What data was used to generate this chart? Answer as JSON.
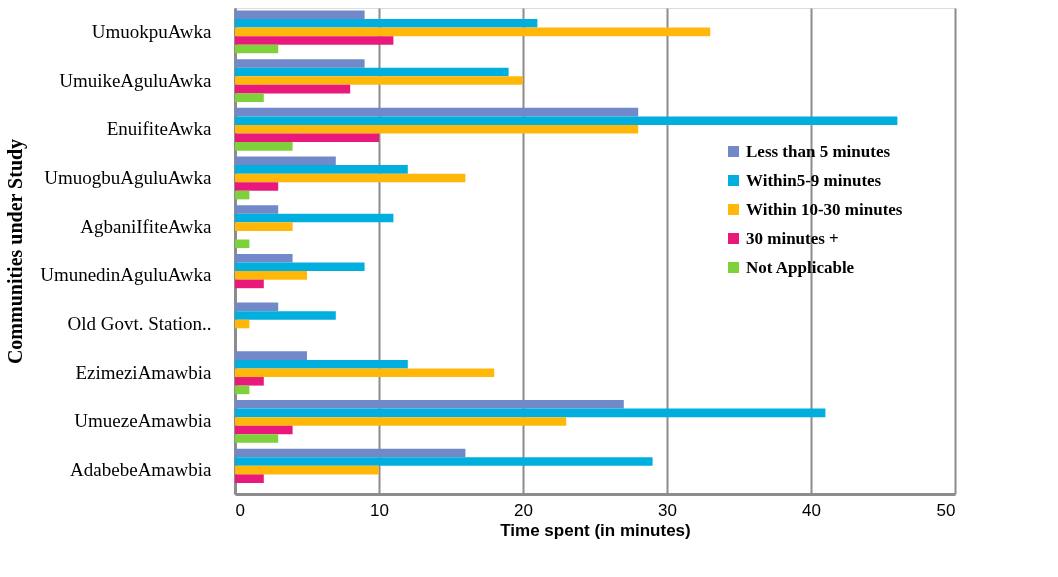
{
  "chart_data": {
    "type": "bar",
    "orientation": "horizontal",
    "xlabel": "Time spent (in minutes)",
    "ylabel": "Communities under Study",
    "categories": [
      "UmuokpuAwka",
      "UmuikeAguluAwka",
      "EnuifiteAwka",
      "UmuogbuAguluAwka",
      "AgbaniIfiteAwka",
      "UmunedinAguluAwka",
      "Old Govt. Station..",
      "EzimeziAmawbia",
      "UmuezeAmawbia",
      "AdabebeAmawbia"
    ],
    "series": [
      {
        "name": "Less than 5 minutes",
        "color": "#7189c8",
        "values": [
          9,
          9,
          28,
          7,
          3,
          4,
          3,
          5,
          27,
          16
        ]
      },
      {
        "name": "Within5-9 minutes",
        "color": "#00afdd",
        "values": [
          21,
          19,
          46,
          12,
          11,
          9,
          7,
          12,
          41,
          29
        ]
      },
      {
        "name": "Within 10-30 minutes",
        "color": "#ffb80a",
        "values": [
          33,
          20,
          28,
          16,
          4,
          5,
          1,
          18,
          23,
          10
        ]
      },
      {
        "name": "30 minutes +",
        "color": "#e8197a",
        "values": [
          11,
          8,
          10,
          3,
          null,
          2,
          null,
          2,
          4,
          2
        ]
      },
      {
        "name": "Not Applicable",
        "color": "#7fd13b",
        "values": [
          3,
          2,
          4,
          1,
          1,
          null,
          null,
          1,
          3,
          null
        ]
      }
    ],
    "xlim": [
      0,
      50
    ],
    "xticks": [
      0,
      10,
      20,
      30,
      40,
      50
    ],
    "grid": "x",
    "legend": "right"
  }
}
